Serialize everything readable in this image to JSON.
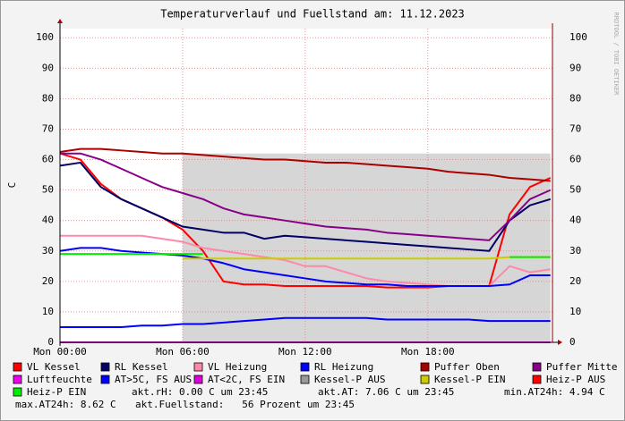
{
  "chart_data": {
    "type": "line",
    "title": "Temperaturverlauf und Fuellstand am: 11.12.2023",
    "y_label": "C",
    "watermark": "RRDTOOL / TOBI OETIKER",
    "x": [
      0,
      1,
      2,
      3,
      4,
      5,
      6,
      7,
      8,
      9,
      10,
      11,
      12,
      13,
      14,
      15,
      16,
      17,
      18,
      19,
      20,
      21,
      22,
      23,
      24
    ],
    "xlim": [
      0,
      24.1
    ],
    "xticks": [
      {
        "value": 0,
        "label": "Mon 00:00"
      },
      {
        "value": 6,
        "label": "Mon 06:00"
      },
      {
        "value": 12,
        "label": "Mon 12:00"
      },
      {
        "value": 18,
        "label": "Mon 18:00"
      }
    ],
    "ylim": [
      0,
      103
    ],
    "yticks": [
      0,
      10,
      20,
      30,
      40,
      50,
      60,
      70,
      80,
      90,
      100
    ],
    "grid": true,
    "series": [
      {
        "name": "VL Kessel",
        "color": "#ff0000",
        "values": [
          62,
          60,
          52,
          47,
          44,
          41,
          37,
          30,
          20,
          19,
          19,
          18.5,
          18.5,
          18.5,
          18.5,
          18.5,
          18,
          18,
          18,
          18.5,
          18.5,
          18.5,
          42,
          51,
          54
        ]
      },
      {
        "name": "RL Kessel",
        "color": "#000066",
        "values": [
          58,
          59,
          51,
          47,
          44,
          41,
          38,
          37,
          36,
          36,
          34,
          35,
          34.5,
          34,
          33.5,
          33,
          32.5,
          32,
          31.5,
          31,
          30.5,
          30,
          40,
          45,
          47
        ]
      },
      {
        "name": "VL Heizung",
        "color": "#ff88aa",
        "values": [
          35,
          35,
          35,
          35,
          35,
          34,
          33,
          31,
          30,
          29,
          28,
          27,
          25,
          25,
          23,
          21,
          20,
          19.5,
          19,
          18.5,
          18.5,
          18.5,
          25,
          23,
          24
        ]
      },
      {
        "name": "RL Heizung",
        "color": "#0000ff",
        "values": [
          30,
          31,
          31,
          30,
          29.5,
          29,
          28.5,
          27.5,
          26,
          24,
          23,
          22,
          21,
          20,
          19.5,
          19,
          19,
          18.5,
          18.5,
          18.5,
          18.5,
          18.5,
          19,
          22,
          22
        ]
      },
      {
        "name": "Puffer Oben",
        "color": "#aa0000",
        "values": [
          62.5,
          63.5,
          63.5,
          63,
          62.5,
          62,
          62,
          61.5,
          61,
          60.5,
          60,
          60,
          59.5,
          59,
          59,
          58.5,
          58,
          57.5,
          57,
          56,
          55.5,
          55,
          54,
          53.5,
          53
        ]
      },
      {
        "name": "Puffer Mitte",
        "color": "#880088",
        "values": [
          62,
          62,
          60,
          57,
          54,
          51,
          49,
          47,
          44,
          42,
          41,
          40,
          39,
          38,
          37.5,
          37,
          36,
          35.5,
          35,
          34.5,
          34,
          33.5,
          40,
          47,
          50
        ]
      },
      {
        "name": "Luftfeuchte",
        "color": "#ee00ee",
        "values": [
          0,
          0,
          0,
          0,
          0,
          0,
          0,
          0,
          0,
          0,
          0,
          0,
          0,
          0,
          0,
          0,
          0,
          0,
          0,
          0,
          0,
          0,
          0,
          0,
          0
        ]
      },
      {
        "name": "AT>5C, FS AUS",
        "color": "#0000ff",
        "values": [
          5,
          5,
          5,
          5,
          5.5,
          5.5,
          6,
          6,
          6.5,
          7,
          7.5,
          8,
          8,
          8,
          8,
          8,
          7.5,
          7.5,
          7.5,
          7.5,
          7.5,
          7,
          7,
          7,
          7
        ]
      },
      {
        "name": "AT<2C, FS EIN",
        "color": "#dd00dd",
        "values": [
          null,
          null,
          null,
          null,
          null,
          null,
          null,
          null,
          null,
          null,
          null,
          null,
          null,
          null,
          null,
          null,
          null,
          null,
          null,
          null,
          null,
          null,
          null,
          null,
          null
        ]
      },
      {
        "name": "Kessel-P AUS",
        "color": "#999999",
        "area": true,
        "values": [
          null,
          null,
          null,
          null,
          null,
          null,
          62,
          62,
          62,
          62,
          62,
          62,
          62,
          62,
          62,
          62,
          62,
          62,
          62,
          62,
          62,
          62,
          62,
          62,
          62
        ]
      },
      {
        "name": "Kessel-P EIN",
        "color": "#cccc00",
        "values": [
          null,
          null,
          null,
          null,
          null,
          null,
          27.5,
          27.5,
          27.5,
          27.5,
          27.5,
          27.5,
          27.5,
          27.5,
          27.5,
          27.5,
          27.5,
          27.5,
          27.5,
          27.5,
          27.5,
          27.5,
          28,
          28,
          28
        ]
      },
      {
        "name": "Heiz-P AUS",
        "color": "#ff0000",
        "values": [
          null,
          null,
          null,
          null,
          null,
          null,
          null,
          null,
          null,
          null,
          null,
          null,
          null,
          null,
          null,
          null,
          null,
          null,
          null,
          null,
          null,
          null,
          null,
          null,
          null
        ]
      },
      {
        "name": "Heiz-P EIN",
        "color": "#00ee00",
        "values": [
          29,
          29,
          29,
          29,
          29,
          29,
          29,
          29,
          null,
          null,
          null,
          null,
          null,
          null,
          null,
          null,
          null,
          null,
          null,
          null,
          null,
          null,
          28,
          28,
          28
        ]
      }
    ],
    "annotations": [
      "akt.rH: 0.00 C um 23:45",
      "akt.AT: 7.06 C um 23:45",
      "min.AT24h: 4.94 C",
      "max.AT24h: 8.62 C",
      "akt.Fuellstand:   56 Prozent um 23:45"
    ]
  }
}
